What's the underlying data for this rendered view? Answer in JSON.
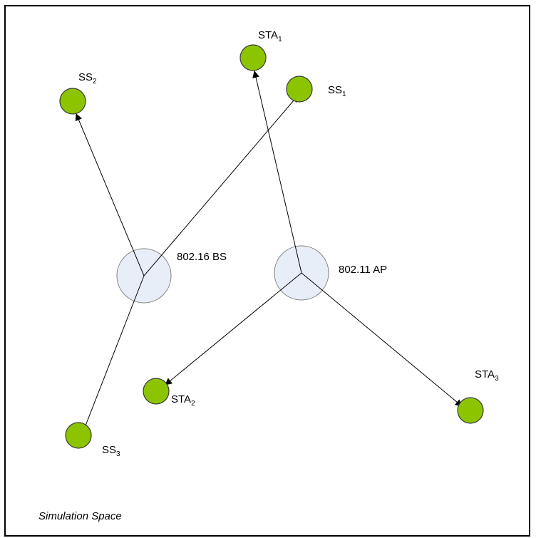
{
  "caption": "Simulation Space",
  "hubs": {
    "bs": {
      "label": "802.16 BS"
    },
    "ap": {
      "label": "802.11 AP"
    }
  },
  "nodes": {
    "ss1": {
      "base": "SS",
      "sub": "1"
    },
    "ss2": {
      "base": "SS",
      "sub": "2"
    },
    "ss3": {
      "base": "SS",
      "sub": "3"
    },
    "sta1": {
      "base": "STA",
      "sub": "1"
    },
    "sta2": {
      "base": "STA",
      "sub": "2"
    },
    "sta3": {
      "base": "STA",
      "sub": "3"
    }
  },
  "colors": {
    "hub_fill": "#e8eef7",
    "node_fill": "#8cc400",
    "frame": "#000000"
  }
}
